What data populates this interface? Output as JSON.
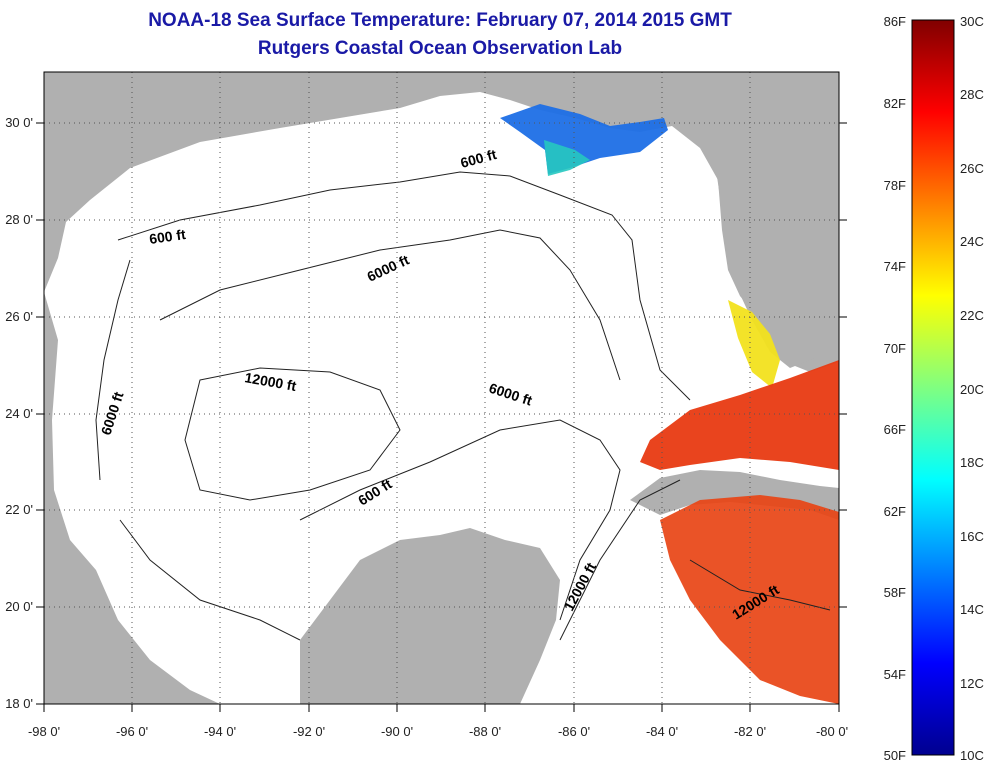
{
  "title": "NOAA-18 Sea Surface Temperature:  February 07, 2014 2015 GMT",
  "subtitle": "Rutgers Coastal Ocean Observation Lab",
  "map": {
    "lon_range": [
      -98,
      -80
    ],
    "lat_range": [
      18,
      31
    ],
    "lon_ticks": [
      "-98 0'",
      "-96 0'",
      "-94 0'",
      "-92 0'",
      "-90 0'",
      "-88 0'",
      "-86 0'",
      "-84 0'",
      "-82 0'",
      "-80 0'"
    ],
    "lat_ticks": [
      "30 0'",
      "28 0'",
      "26 0'",
      "24 0'",
      "22 0'",
      "20 0'",
      "18 0'"
    ],
    "contour_labels": [
      "600 ft",
      "600 ft",
      "6000 ft",
      "6000 ft",
      "12000 ft",
      "6000 ft",
      "600 ft",
      "12000 ft",
      "12000 ft"
    ],
    "land_color": "#b0b0b0",
    "water_color": "#ffffff",
    "gridlines": "dotted"
  },
  "colorbar": {
    "f_labels": [
      "86F",
      "82F",
      "78F",
      "74F",
      "70F",
      "66F",
      "62F",
      "58F",
      "54F",
      "50F"
    ],
    "c_labels": [
      "30C",
      "28C",
      "26C",
      "24C",
      "22C",
      "20C",
      "18C",
      "16C",
      "14C",
      "12C",
      "10C"
    ],
    "range_f": [
      50,
      86
    ],
    "range_c": [
      10,
      30
    ],
    "colormap": "jet"
  }
}
